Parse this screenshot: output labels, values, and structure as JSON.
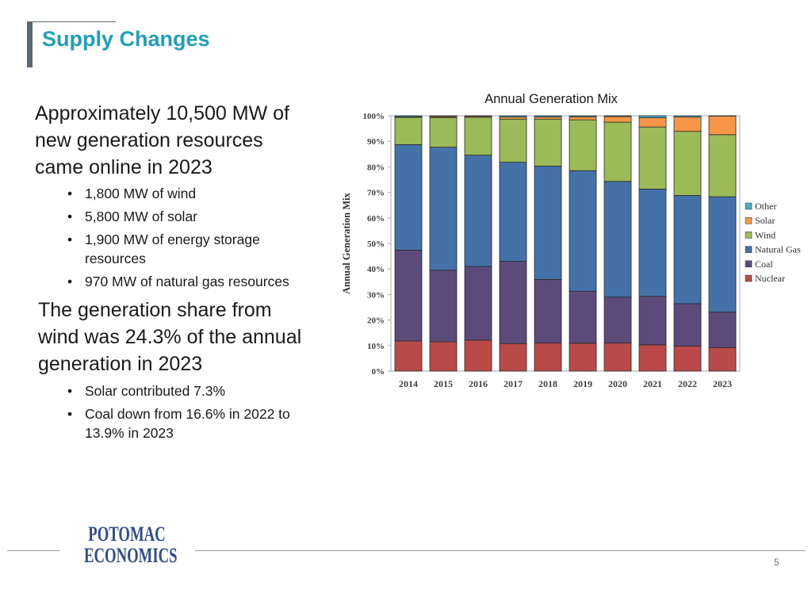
{
  "slide": {
    "title": "Supply Changes",
    "page_number": "5"
  },
  "content": {
    "section1": {
      "heading_lines": [
        "Approximately 10,500 MW of",
        "new generation resources",
        "came online in 2023"
      ],
      "bullets": [
        {
          "lines": [
            "1,800 MW of wind"
          ]
        },
        {
          "lines": [
            "5,800 MW of solar"
          ]
        },
        {
          "lines": [
            "1,900 MW of energy storage",
            "resources"
          ]
        },
        {
          "lines": [
            "970 MW of natural gas resources"
          ]
        }
      ]
    },
    "section2": {
      "heading_lines": [
        "The generation share from",
        "wind was 24.3% of the annual",
        "generation in 2023"
      ],
      "bullets": [
        {
          "lines": [
            "Solar contributed 7.3%"
          ]
        },
        {
          "lines": [
            "Coal down from 16.6% in 2022 to",
            "13.9% in 2023"
          ]
        }
      ]
    }
  },
  "logo": {
    "line1": "POTOMAC",
    "line2": "ECONOMICS"
  },
  "chart_data": {
    "type": "bar",
    "stacked": true,
    "title": "Annual Generation Mix",
    "xlabel": "",
    "ylabel": "Annual Generation Mix",
    "ylim": [
      0,
      100
    ],
    "yticks": [
      "0%",
      "10%",
      "20%",
      "30%",
      "40%",
      "50%",
      "60%",
      "70%",
      "80%",
      "90%",
      "100%"
    ],
    "categories": [
      "2014",
      "2015",
      "2016",
      "2017",
      "2018",
      "2019",
      "2020",
      "2021",
      "2022",
      "2023"
    ],
    "series": [
      {
        "name": "Nuclear",
        "color": "#b94a48",
        "values": [
          11.8,
          11.5,
          12.1,
          10.8,
          11.0,
          10.9,
          11.0,
          10.3,
          9.8,
          9.2
        ]
      },
      {
        "name": "Coal",
        "color": "#5b4a7a",
        "values": [
          35.6,
          28.0,
          28.9,
          32.2,
          24.9,
          20.4,
          18.0,
          19.0,
          16.6,
          13.9
        ]
      },
      {
        "name": "Natural Gas",
        "color": "#4472a8",
        "values": [
          41.3,
          48.2,
          43.6,
          38.8,
          44.4,
          47.2,
          45.3,
          42.0,
          42.4,
          45.2
        ]
      },
      {
        "name": "Wind",
        "color": "#9bbb59",
        "values": [
          10.7,
          11.6,
          14.8,
          16.9,
          18.4,
          19.9,
          23.2,
          24.3,
          25.1,
          24.3
        ]
      },
      {
        "name": "Solar",
        "color": "#f79646",
        "values": [
          0.2,
          0.4,
          0.4,
          0.8,
          0.8,
          1.2,
          2.2,
          3.6,
          5.6,
          7.3
        ]
      },
      {
        "name": "Other",
        "color": "#4bacc6",
        "values": [
          0.4,
          0.3,
          0.2,
          0.5,
          0.5,
          0.4,
          0.3,
          0.8,
          0.5,
          0.1
        ]
      }
    ],
    "legend_position": "right",
    "legend_order": [
      "Other",
      "Solar",
      "Wind",
      "Natural Gas",
      "Coal",
      "Nuclear"
    ]
  }
}
